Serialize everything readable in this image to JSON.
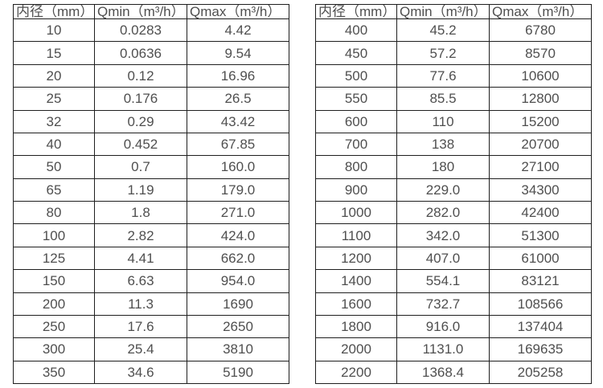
{
  "colors": {
    "background": "#ffffff",
    "border": "#1f1f1f",
    "text": "#4f4f4f"
  },
  "chart_data": [
    {
      "type": "table",
      "title": "",
      "columns": [
        "内径（mm）",
        "Qmin（m³/h）",
        "Qmax（m³/h）"
      ],
      "rows": [
        [
          "10",
          "0.0283",
          "4.42"
        ],
        [
          "15",
          "0.0636",
          "9.54"
        ],
        [
          "20",
          "0.12",
          "16.96"
        ],
        [
          "25",
          "0.176",
          "26.5"
        ],
        [
          "32",
          "0.29",
          "43.42"
        ],
        [
          "40",
          "0.452",
          "67.85"
        ],
        [
          "50",
          "0.7",
          "160.0"
        ],
        [
          "65",
          "1.19",
          "179.0"
        ],
        [
          "80",
          "1.8",
          "271.0"
        ],
        [
          "100",
          "2.82",
          "424.0"
        ],
        [
          "125",
          "4.41",
          "662.0"
        ],
        [
          "150",
          "6.63",
          "954.0"
        ],
        [
          "200",
          "11.3",
          "1690"
        ],
        [
          "250",
          "17.6",
          "2650"
        ],
        [
          "300",
          "25.4",
          "3810"
        ],
        [
          "350",
          "34.6",
          "5190"
        ]
      ]
    },
    {
      "type": "table",
      "title": "",
      "columns": [
        "内径（mm）",
        "Qmin（m³/h）",
        "Qmax（m³/h）"
      ],
      "rows": [
        [
          "400",
          "45.2",
          "6780"
        ],
        [
          "450",
          "57.2",
          "8570"
        ],
        [
          "500",
          "77.6",
          "10600"
        ],
        [
          "550",
          "85.5",
          "12800"
        ],
        [
          "600",
          "110",
          "15200"
        ],
        [
          "700",
          "138",
          "20700"
        ],
        [
          "800",
          "180",
          "27100"
        ],
        [
          "900",
          "229.0",
          "34300"
        ],
        [
          "1000",
          "282.0",
          "42400"
        ],
        [
          "1100",
          "342.0",
          "51300"
        ],
        [
          "1200",
          "407.0",
          "61000"
        ],
        [
          "1400",
          "554.1",
          "83121"
        ],
        [
          "1600",
          "732.7",
          "108566"
        ],
        [
          "1800",
          "916.0",
          "137404"
        ],
        [
          "2000",
          "1131.0",
          "169635"
        ],
        [
          "2200",
          "1368.4",
          "205258"
        ]
      ]
    }
  ]
}
